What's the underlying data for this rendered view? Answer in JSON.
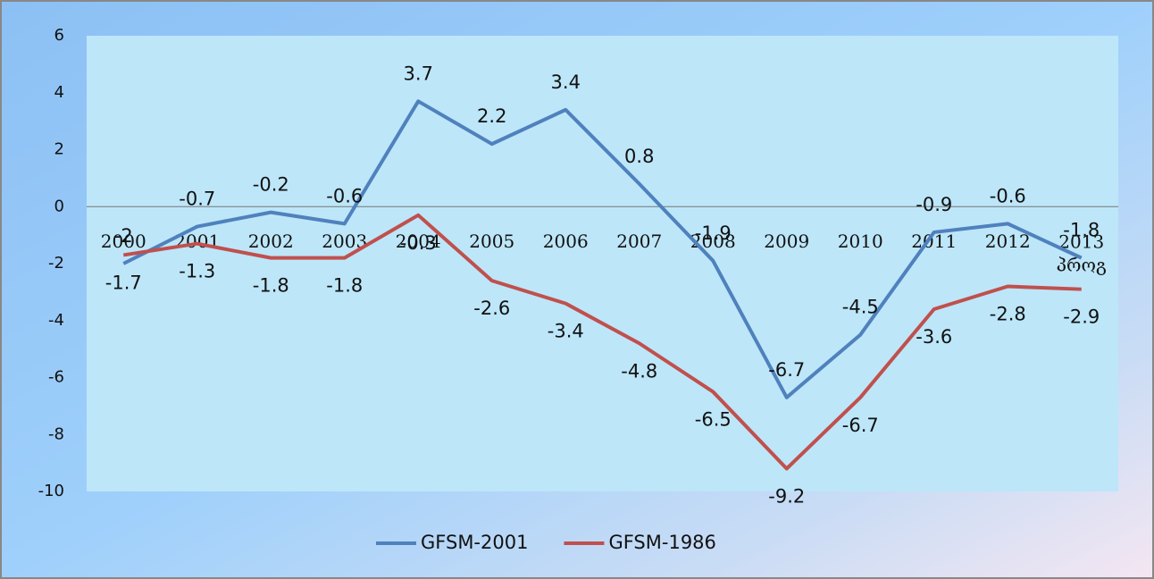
{
  "chart_data": {
    "type": "line",
    "categories": [
      "2000",
      "2001",
      "2002",
      "2003",
      "2004",
      "2005",
      "2006",
      "2007",
      "2008",
      "2009",
      "2010",
      "2011",
      "2012",
      "2013 პროგ"
    ],
    "series": [
      {
        "name": "GFSM-2001",
        "color": "#4f81bd",
        "values": [
          -2,
          -0.7,
          -0.2,
          -0.6,
          3.7,
          2.2,
          3.4,
          0.8,
          -1.9,
          -6.7,
          -4.5,
          -0.9,
          -0.6,
          -1.8
        ]
      },
      {
        "name": "GFSM-1986",
        "color": "#c0504d",
        "values": [
          -1.7,
          -1.3,
          -1.8,
          -1.8,
          -0.3,
          -2.6,
          -3.4,
          -4.8,
          -6.5,
          -9.2,
          -6.7,
          -3.6,
          -2.8,
          -2.9
        ]
      }
    ],
    "ylim": [
      -10,
      6
    ],
    "yticks": [
      -10,
      -8,
      -6,
      -4,
      -2,
      0,
      2,
      4,
      6
    ],
    "legend": "bottom"
  }
}
